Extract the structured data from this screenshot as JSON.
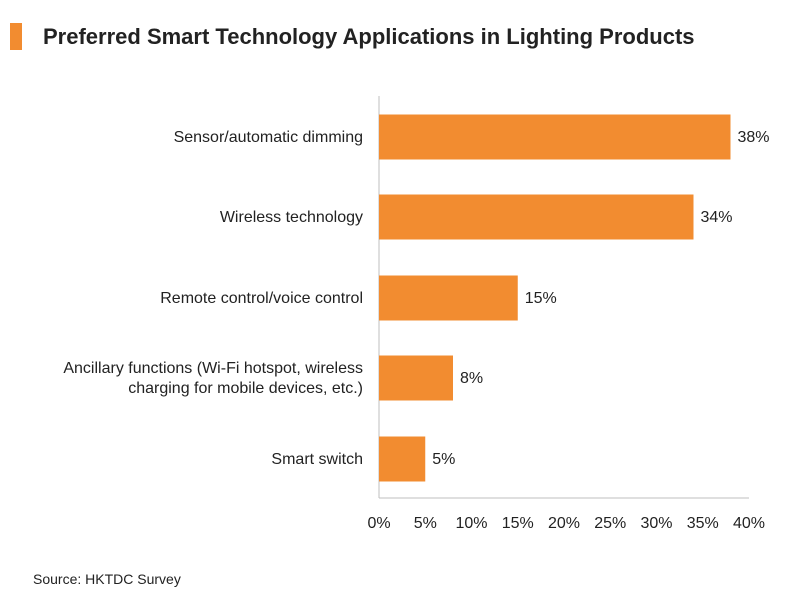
{
  "chart_data": {
    "type": "bar",
    "orientation": "horizontal",
    "title": "Preferred Smart Technology Applications in Lighting Products",
    "categories": [
      [
        "Sensor/automatic dimming"
      ],
      [
        "Wireless technology"
      ],
      [
        "Remote control/voice control"
      ],
      [
        "Ancillary functions (Wi-Fi hotspot, wireless",
        "charging for mobile devices, etc.)"
      ],
      [
        "Smart switch"
      ]
    ],
    "values": [
      38,
      34,
      15,
      8,
      5
    ],
    "value_labels": [
      "38%",
      "34%",
      "15%",
      "8%",
      "5%"
    ],
    "xlim": [
      0,
      40
    ],
    "xticks": [
      0,
      5,
      10,
      15,
      20,
      25,
      30,
      35,
      40
    ],
    "xtick_labels": [
      "0%",
      "5%",
      "10%",
      "15%",
      "20%",
      "25%",
      "30%",
      "35%",
      "40%"
    ],
    "xlabel": "",
    "ylabel": "",
    "grid": false,
    "bar_color": "#f28c30"
  },
  "accent_color": "#f28c30",
  "source": "Source: HKTDC Survey"
}
